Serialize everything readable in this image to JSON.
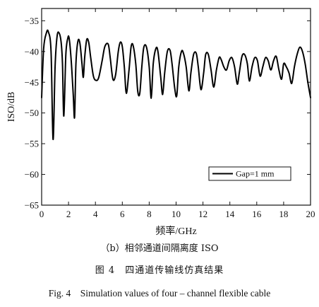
{
  "chart_data": {
    "type": "line",
    "xlabel": "频率/GHz",
    "ylabel": "ISO/dB",
    "xlim": [
      0,
      20
    ],
    "ylim": [
      -65,
      -33
    ],
    "xticks": [
      0,
      2,
      4,
      6,
      8,
      10,
      12,
      14,
      16,
      18,
      20
    ],
    "yticks": [
      -35,
      -40,
      -45,
      -50,
      -55,
      -60,
      -65
    ],
    "tick_labels": {
      "x": [
        "0",
        "2",
        "4",
        "6",
        "8",
        "10",
        "12",
        "14",
        "16",
        "18",
        "20"
      ],
      "y": [
        "−35",
        "−40",
        "−45",
        "−50",
        "−55",
        "−60",
        "−65"
      ]
    },
    "grid": false,
    "legend_position": "lower-right",
    "series": [
      {
        "name": "Gap=1 mm",
        "color": "#000000",
        "x": [
          0.0,
          0.15,
          0.35,
          0.5,
          0.7,
          0.85,
          1.0,
          1.15,
          1.3,
          1.45,
          1.55,
          1.65,
          1.8,
          1.95,
          2.05,
          2.2,
          2.35,
          2.45,
          2.55,
          2.7,
          2.85,
          3.0,
          3.1,
          3.2,
          3.35,
          3.5,
          3.65,
          3.85,
          4.05,
          4.25,
          4.5,
          4.7,
          4.95,
          5.1,
          5.3,
          5.5,
          5.7,
          5.85,
          6.0,
          6.15,
          6.3,
          6.5,
          6.65,
          6.8,
          7.0,
          7.15,
          7.3,
          7.45,
          7.6,
          7.8,
          8.0,
          8.15,
          8.3,
          8.5,
          8.65,
          8.85,
          9.0,
          9.15,
          9.35,
          9.55,
          9.7,
          9.9,
          10.05,
          10.2,
          10.4,
          10.55,
          10.75,
          10.95,
          11.1,
          11.3,
          11.5,
          11.65,
          11.85,
          12.05,
          12.2,
          12.4,
          12.6,
          12.8,
          13.0,
          13.2,
          13.35,
          13.55,
          13.75,
          13.95,
          14.15,
          14.35,
          14.55,
          14.7,
          14.9,
          15.1,
          15.3,
          15.45,
          15.65,
          15.85,
          16.05,
          16.25,
          16.45,
          16.65,
          16.85,
          17.05,
          17.25,
          17.45,
          17.65,
          17.85,
          18.0,
          18.2,
          18.4,
          18.6,
          18.8,
          19.0,
          19.2,
          19.4,
          19.6,
          19.8,
          20.0
        ],
        "values": [
          -47.5,
          -39.5,
          -37.0,
          -36.8,
          -40.0,
          -54.3,
          -42.5,
          -37.5,
          -37.0,
          -38.5,
          -42.0,
          -50.5,
          -40.5,
          -37.8,
          -37.9,
          -41.5,
          -47.0,
          -50.7,
          -42.0,
          -38.3,
          -38.7,
          -42.0,
          -44.2,
          -41.0,
          -38.1,
          -38.5,
          -41.0,
          -44.0,
          -44.7,
          -44.2,
          -41.5,
          -39.2,
          -38.8,
          -41.0,
          -44.5,
          -43.8,
          -40.0,
          -38.5,
          -39.2,
          -42.5,
          -46.8,
          -43.0,
          -39.3,
          -39.0,
          -42.0,
          -46.5,
          -46.8,
          -42.5,
          -39.3,
          -39.3,
          -42.5,
          -47.6,
          -42.0,
          -39.5,
          -40.0,
          -44.0,
          -47.0,
          -43.5,
          -40.0,
          -39.8,
          -42.0,
          -46.0,
          -47.2,
          -42.5,
          -40.0,
          -40.3,
          -42.5,
          -46.4,
          -43.5,
          -40.5,
          -40.3,
          -42.5,
          -46.2,
          -43.5,
          -40.5,
          -40.5,
          -43.0,
          -45.8,
          -43.0,
          -41.0,
          -41.3,
          -42.5,
          -43.0,
          -41.5,
          -41.0,
          -42.5,
          -45.3,
          -43.5,
          -40.8,
          -40.5,
          -42.0,
          -44.8,
          -42.5,
          -41.0,
          -41.5,
          -44.0,
          -42.5,
          -41.0,
          -41.5,
          -43.0,
          -41.5,
          -40.8,
          -43.0,
          -44.5,
          -42.0,
          -42.5,
          -43.5,
          -45.2,
          -42.5,
          -40.5,
          -39.3,
          -40.0,
          -42.0,
          -45.0,
          -47.5
        ]
      }
    ]
  },
  "captions": {
    "subfigure": "（b）相邻通道间隔离度 ISO",
    "figure_cn": "图 4　四通道传输线仿真结果",
    "figure_en": "Fig. 4　Simulation values of four – channel flexible cable"
  }
}
